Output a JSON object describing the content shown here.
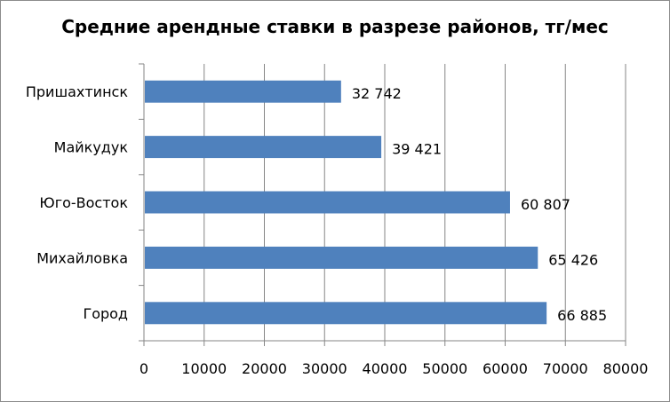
{
  "chart_data": {
    "type": "bar",
    "orientation": "horizontal",
    "title": "Средние арендные ставки в разрезе районов, тг/мес",
    "xlabel": "",
    "ylabel": "",
    "categories": [
      "Пришахтинск",
      "Майкудук",
      "Юго-Восток",
      "Михайловка",
      "Город"
    ],
    "values": [
      32742,
      39421,
      60807,
      65426,
      66885
    ],
    "data_labels": [
      "32 742",
      "39 421",
      "60 807",
      "65 426",
      "66 885"
    ],
    "xlim": [
      0,
      80000
    ],
    "xticks": [
      "0",
      "10000",
      "20000",
      "30000",
      "40000",
      "50000",
      "60000",
      "70000",
      "80000"
    ],
    "grid": "vertical",
    "legend": "none",
    "bar_color": "#4f81bd",
    "grid_color": "#868686"
  }
}
